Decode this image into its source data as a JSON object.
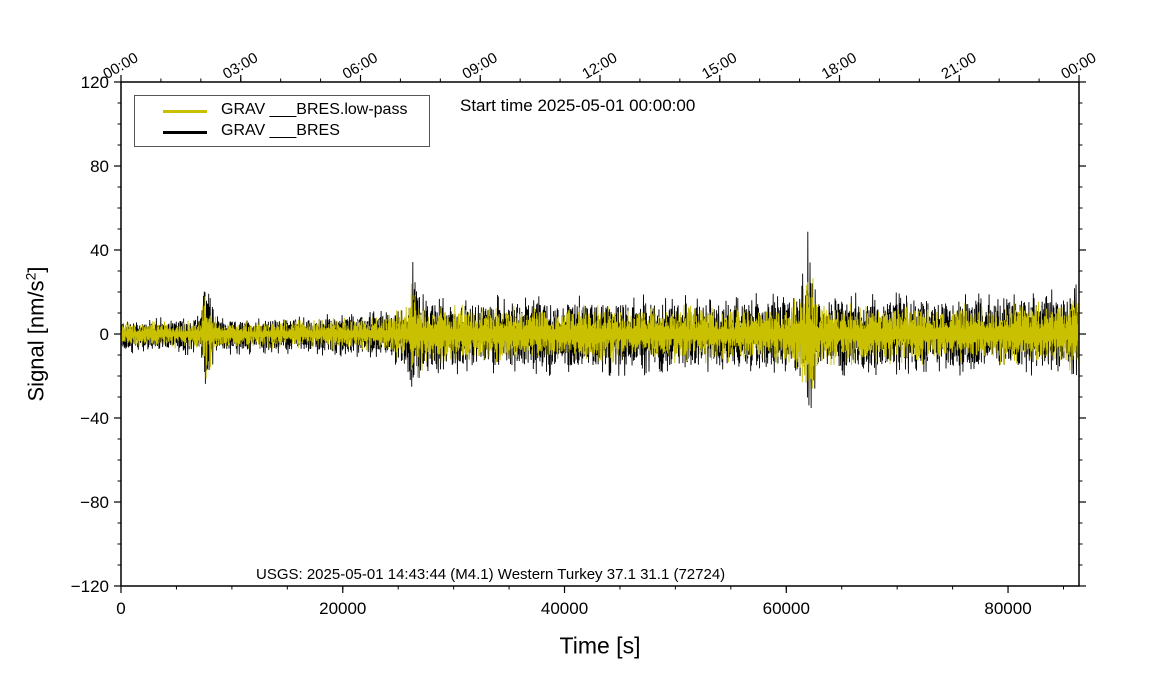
{
  "chart_data": {
    "type": "line",
    "xlabel": "Time [s]",
    "ylabel_prefix": "Signal [nm/s",
    "ylabel_sup": "2",
    "ylabel_suffix": "]",
    "annotation_top": "Start time 2025-05-01 00:00:00",
    "annotation_bottom": "USGS: 2025-05-01 14:43:44 (M4.1) Western Turkey 37.1 31.1 (72724)",
    "xlim": [
      0,
      86400
    ],
    "ylim": [
      -120,
      120
    ],
    "x_ticks": [
      0,
      20000,
      40000,
      60000,
      80000
    ],
    "x_tick_labels": [
      "0",
      "20000",
      "40000",
      "60000",
      "80000"
    ],
    "y_ticks": [
      -120,
      -80,
      -40,
      0,
      40,
      80,
      120
    ],
    "y_tick_labels": [
      "−120",
      "−80",
      "−40",
      "0",
      "40",
      "80",
      "120"
    ],
    "top_axis_ticks": [
      0,
      10800,
      21600,
      32400,
      43200,
      54000,
      64800,
      75600,
      86400
    ],
    "top_axis_labels": [
      "00:00",
      "03:00",
      "06:00",
      "09:00",
      "12:00",
      "15:00",
      "18:00",
      "21:00",
      "00:00"
    ],
    "grid": false,
    "legend_position": "top-left",
    "series": [
      {
        "name": "GRAV ___BRES.low-pass",
        "color": "#c8c000",
        "x": [
          0,
          2000,
          5000,
          7200,
          7600,
          8000,
          8400,
          9000,
          12000,
          16000,
          20000,
          24000,
          26000,
          26400,
          26800,
          27400,
          30000,
          35000,
          40000,
          45000,
          50000,
          55000,
          60000,
          61600,
          62000,
          62400,
          63000,
          66000,
          70000,
          75000,
          80000,
          84000,
          86400
        ],
        "amp_upper": [
          6,
          6,
          6,
          8,
          26,
          18,
          9,
          6,
          6,
          7,
          8,
          10,
          14,
          36,
          22,
          15,
          14,
          14,
          14,
          14,
          14,
          14,
          15,
          22,
          46,
          28,
          16,
          15,
          15,
          15,
          15,
          16,
          20
        ],
        "amp_lower": [
          -7,
          -7,
          -7,
          -9,
          -24,
          -18,
          -9,
          -7,
          -7,
          -7,
          -8,
          -10,
          -15,
          -30,
          -22,
          -15,
          -14,
          -14,
          -14,
          -14,
          -14,
          -14,
          -15,
          -24,
          -45,
          -28,
          -16,
          -15,
          -15,
          -15,
          -15,
          -16,
          -18
        ]
      },
      {
        "name": "GRAV ___BRES",
        "color": "#000000",
        "x": [
          0,
          2000,
          5000,
          7200,
          7600,
          8000,
          8400,
          9000,
          12000,
          16000,
          20000,
          24000,
          26000,
          26400,
          26800,
          27400,
          30000,
          35000,
          40000,
          45000,
          50000,
          55000,
          60000,
          61600,
          62000,
          62400,
          63000,
          66000,
          70000,
          75000,
          80000,
          84000,
          86400
        ],
        "amp_upper": [
          8,
          8,
          8,
          10,
          30,
          20,
          11,
          8,
          8,
          9,
          10,
          12,
          18,
          41,
          26,
          19,
          18,
          19,
          19,
          19,
          19,
          19,
          20,
          30,
          53,
          34,
          21,
          20,
          20,
          20,
          20,
          22,
          25
        ],
        "amp_lower": [
          -10,
          -10,
          -10,
          -12,
          -33,
          -22,
          -12,
          -10,
          -10,
          -10,
          -11,
          -12,
          -19,
          -34,
          -26,
          -20,
          -20,
          -20,
          -20,
          -20,
          -20,
          -20,
          -20,
          -30,
          -51,
          -32,
          -21,
          -20,
          -20,
          -20,
          -20,
          -21,
          -20
        ]
      }
    ]
  }
}
